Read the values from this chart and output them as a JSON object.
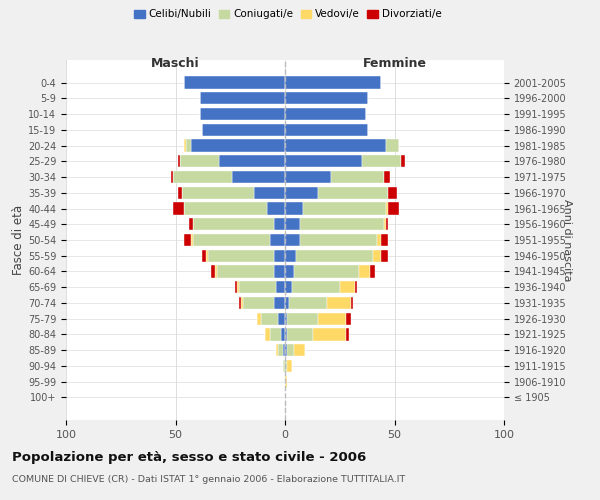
{
  "age_groups": [
    "0-4",
    "5-9",
    "10-14",
    "15-19",
    "20-24",
    "25-29",
    "30-34",
    "35-39",
    "40-44",
    "45-49",
    "50-54",
    "55-59",
    "60-64",
    "65-69",
    "70-74",
    "75-79",
    "80-84",
    "85-89",
    "90-94",
    "95-99",
    "100+"
  ],
  "birth_years": [
    "2001-2005",
    "1996-2000",
    "1991-1995",
    "1986-1990",
    "1981-1985",
    "1976-1980",
    "1971-1975",
    "1966-1970",
    "1961-1965",
    "1956-1960",
    "1951-1955",
    "1946-1950",
    "1941-1945",
    "1936-1940",
    "1931-1935",
    "1926-1930",
    "1921-1925",
    "1916-1920",
    "1911-1915",
    "1906-1910",
    "≤ 1905"
  ],
  "colors": {
    "celibi": "#4472c4",
    "coniugati": "#c5d9a0",
    "vedovi": "#ffd966",
    "divorziati": "#cc0000"
  },
  "males": {
    "celibi": [
      46,
      39,
      39,
      38,
      43,
      30,
      24,
      14,
      8,
      5,
      7,
      5,
      5,
      4,
      5,
      3,
      2,
      1,
      0,
      0,
      0
    ],
    "coniugati": [
      0,
      0,
      0,
      0,
      2,
      18,
      27,
      33,
      38,
      37,
      35,
      30,
      26,
      17,
      14,
      8,
      5,
      2,
      1,
      0,
      0
    ],
    "vedovi": [
      0,
      0,
      0,
      0,
      1,
      0,
      0,
      0,
      0,
      0,
      1,
      1,
      1,
      1,
      1,
      2,
      2,
      1,
      0,
      0,
      0
    ],
    "divorziati": [
      0,
      0,
      0,
      0,
      0,
      1,
      1,
      2,
      5,
      2,
      3,
      2,
      2,
      1,
      1,
      0,
      0,
      0,
      0,
      0,
      0
    ]
  },
  "females": {
    "celibi": [
      44,
      38,
      37,
      38,
      46,
      35,
      21,
      15,
      8,
      7,
      7,
      5,
      4,
      3,
      2,
      1,
      1,
      1,
      0,
      0,
      0
    ],
    "coniugati": [
      0,
      0,
      0,
      0,
      6,
      18,
      24,
      32,
      38,
      38,
      35,
      35,
      30,
      22,
      17,
      14,
      12,
      3,
      1,
      0,
      0
    ],
    "vedovi": [
      0,
      0,
      0,
      0,
      0,
      0,
      0,
      0,
      1,
      1,
      2,
      4,
      5,
      7,
      11,
      13,
      15,
      5,
      2,
      1,
      0
    ],
    "divorziati": [
      0,
      0,
      0,
      0,
      0,
      2,
      3,
      4,
      5,
      1,
      3,
      3,
      2,
      1,
      1,
      2,
      1,
      0,
      0,
      0,
      0
    ]
  },
  "xlim": 100,
  "title": "Popolazione per età, sesso e stato civile - 2006",
  "subtitle": "COMUNE DI CHIEVE (CR) - Dati ISTAT 1° gennaio 2006 - Elaborazione TUTTITALIA.IT",
  "ylabel_left": "Fasce di età",
  "ylabel_right": "Anni di nascita",
  "xlabel_left": "Maschi",
  "xlabel_right": "Femmine",
  "bg_color": "#f0f0f0",
  "plot_bg": "#ffffff",
  "legend_labels": [
    "Celibi/Nubili",
    "Coniugati/e",
    "Vedovi/e",
    "Divorziati/e"
  ]
}
